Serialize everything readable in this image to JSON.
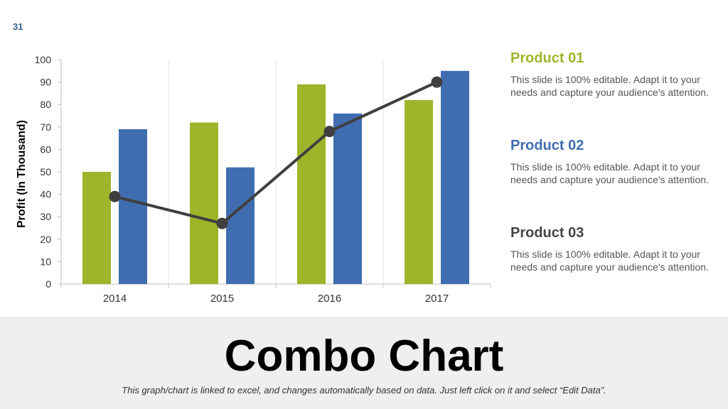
{
  "slide_number": "31",
  "chart_data": {
    "type": "bar",
    "categories": [
      "2014",
      "2015",
      "2016",
      "2017"
    ],
    "series": [
      {
        "type": "bar",
        "color": "#9db52a",
        "values": [
          50,
          72,
          89,
          82
        ]
      },
      {
        "type": "bar",
        "color": "#3f6db0",
        "values": [
          69,
          52,
          76,
          95
        ]
      },
      {
        "type": "line",
        "color": "#3f3f3f",
        "values": [
          39,
          27,
          68,
          90
        ]
      }
    ],
    "ylabel": "Profit (In Thousand)",
    "ylim": [
      0,
      100
    ],
    "yticks": [
      0,
      10,
      20,
      30,
      40,
      50,
      60,
      70,
      80,
      90,
      100
    ],
    "grid": "vertical category separators"
  },
  "products": [
    {
      "title": "Product 01",
      "color": "#9db52a",
      "text": "This slide is 100% editable. Adapt it to your needs and capture your audience's attention."
    },
    {
      "title": "Product 02",
      "color": "#3f6db0",
      "text": "This slide is 100% editable. Adapt it to your needs and capture your audience's attention."
    },
    {
      "title": "Product 03",
      "color": "#444444",
      "text": "This slide is 100% editable. Adapt it to your needs and capture your audience's attention."
    }
  ],
  "footer": {
    "title": "Combo Chart",
    "note": "This graph/chart is linked to excel, and changes automatically based on data. Just left click on it and select “Edit Data”."
  }
}
